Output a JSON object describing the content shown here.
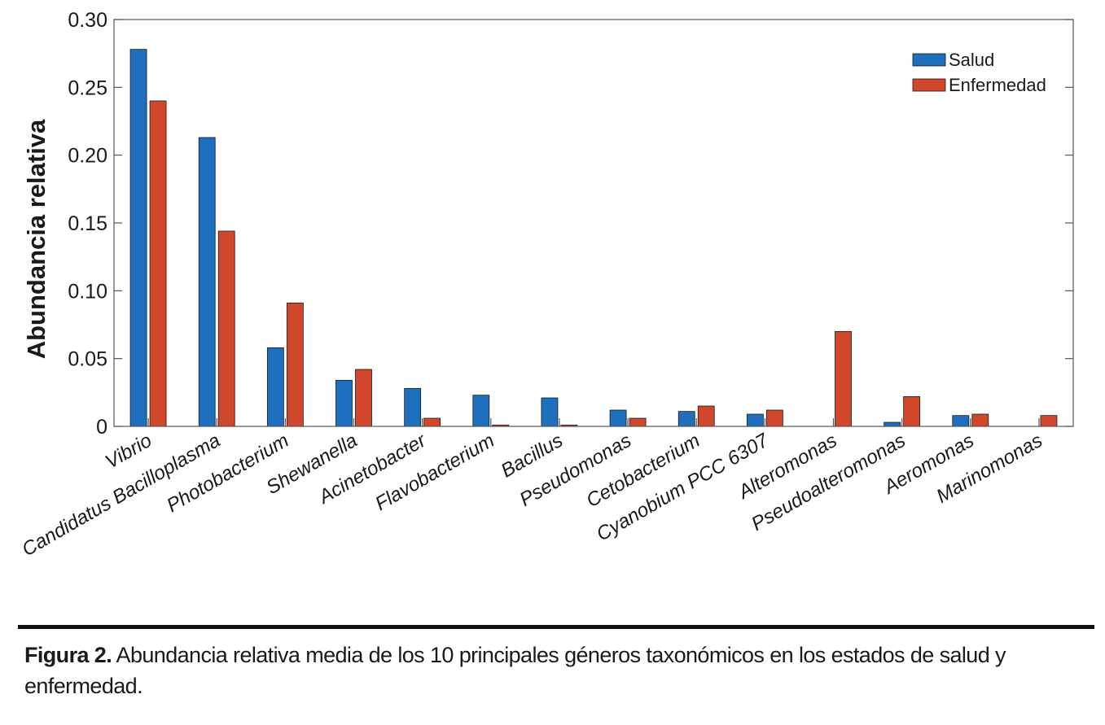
{
  "chart_data": {
    "type": "bar",
    "categories": [
      "Vibrio",
      "Candidatus Bacilloplasma",
      "Photobacterium",
      "Shewanella",
      "Acinetobacter",
      "Flavobacterium",
      "Bacillus",
      "Pseudomonas",
      "Cetobacterium",
      "Cyanobium PCC 6307",
      "Alteromonas",
      "Pseudoalteromonas",
      "Aeromonas",
      "Marinomonas"
    ],
    "series": [
      {
        "name": "Salud",
        "color": "#1f6fbf",
        "values": [
          0.278,
          0.213,
          0.058,
          0.034,
          0.028,
          0.023,
          0.021,
          0.012,
          0.011,
          0.009,
          0.0,
          0.003,
          0.008,
          0.0
        ]
      },
      {
        "name": "Enfermedad",
        "color": "#d0472c",
        "values": [
          0.24,
          0.144,
          0.091,
          0.042,
          0.006,
          0.001,
          0.001,
          0.006,
          0.015,
          0.012,
          0.07,
          0.022,
          0.009,
          0.008
        ]
      }
    ],
    "ylabel": "Abundancia relativa",
    "xlabel": "",
    "ylim": [
      0,
      0.3
    ],
    "yticks": [
      "0",
      "0.05",
      "0.10",
      "0.15",
      "0.20",
      "0.25",
      "0.30"
    ],
    "legend_position": "top-right"
  },
  "caption": {
    "label": "Figura 2.",
    "text": " Abundancia relativa media de los 10 principales géneros taxonómicos en los estados de salud y enfermedad."
  }
}
